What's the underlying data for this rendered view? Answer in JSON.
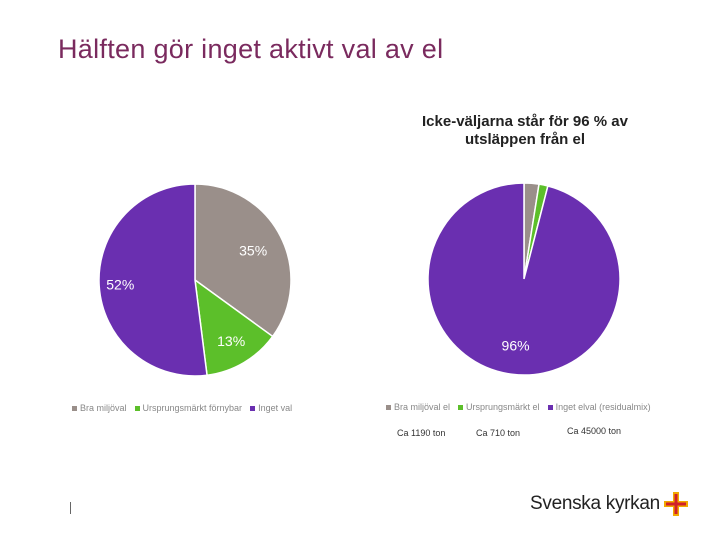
{
  "slide": {
    "title": "Hälften gör inget aktivt val av el"
  },
  "chart_data": [
    {
      "type": "pie",
      "title": "",
      "categories": [
        "Bra miljöval",
        "Ursprungsmärkt förnybar",
        "Inget val"
      ],
      "values": [
        35,
        13,
        52
      ],
      "labels": [
        "35%",
        "13%",
        "52%"
      ],
      "colors": [
        "#9a8f8a",
        "#5cbf2a",
        "#6a2fb0"
      ],
      "legend_position": "bottom"
    },
    {
      "type": "pie",
      "title": "Icke-väljarna står för 96 % av utsläppen från el",
      "categories": [
        "Bra miljöval el",
        "Ursprungsmärkt el",
        "Inget elval (residualmix)"
      ],
      "values": [
        2.5,
        1.5,
        96
      ],
      "labels": [
        "",
        "",
        "96%"
      ],
      "colors": [
        "#9a8f8a",
        "#5cbf2a",
        "#6a2fb0"
      ],
      "legend_position": "bottom",
      "annotations": [
        "Ca 1190 ton",
        "Ca 710 ton",
        "Ca 45000 ton"
      ]
    }
  ],
  "logo": {
    "text": "Svenska kyrkan",
    "colors": [
      "#f2a900",
      "#d0202a"
    ]
  }
}
